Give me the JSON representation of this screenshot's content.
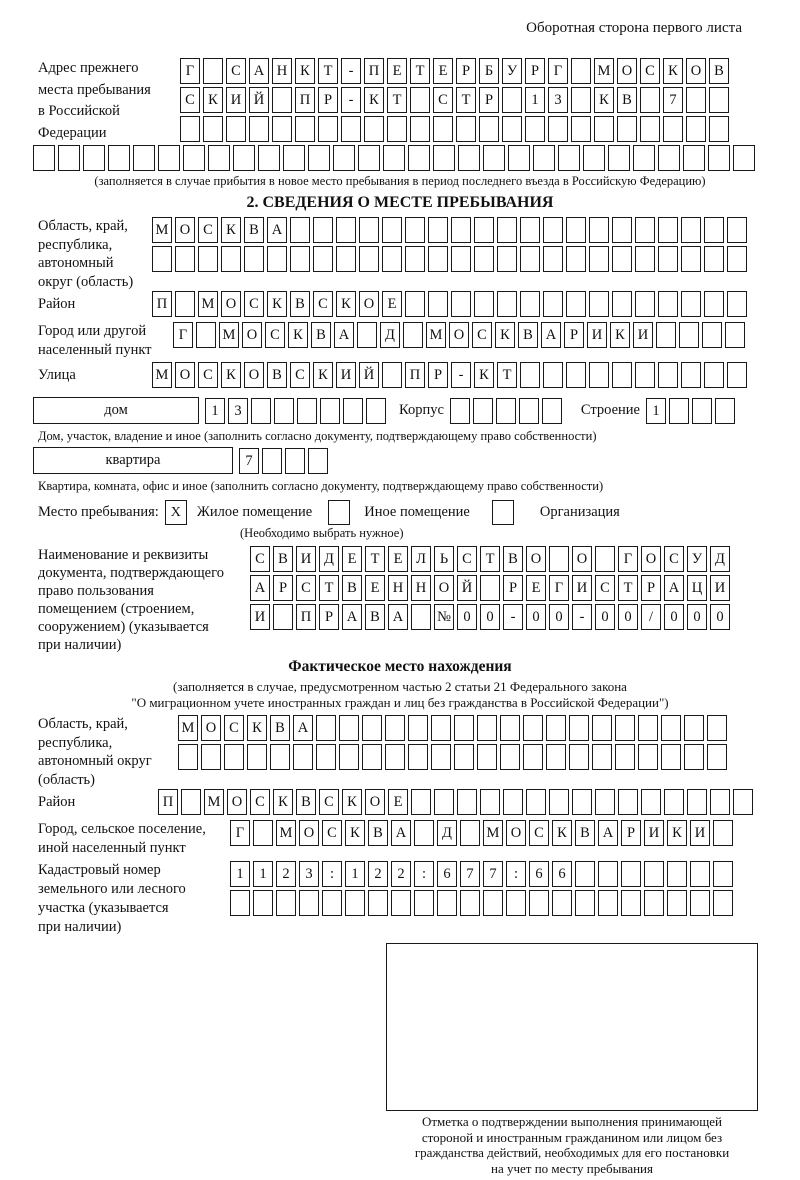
{
  "page": {
    "side_note": "Оборотная сторона первого листа"
  },
  "prev_address": {
    "label_lines": [
      "Адрес прежнего",
      "места пребывания",
      "в Российской",
      "Федерации"
    ],
    "row1": "Г САНКТ-ПЕТЕРБУРГ МОСКОВ",
    "row2": "СКИЙ ПР-КТ СТР 13 КВ 7",
    "row3": "",
    "row4": "",
    "caption": "(заполняется в случае прибытия в новое место пребывания в период последнего въезда в Российскую Федерацию)"
  },
  "section2": {
    "title": "2. СВЕДЕНИЯ О МЕСТЕ ПРЕБЫВАНИЯ",
    "region": {
      "label_lines": [
        "Область, край,",
        "республика,",
        "автономный",
        "округ (область)"
      ],
      "row1": "МОСКВА",
      "row2": ""
    },
    "district": {
      "label": "Район",
      "row": "П МОСКВСКОЕ"
    },
    "city": {
      "label_lines": [
        "Город или другой",
        "населенный пункт"
      ],
      "row": "Г МОСКВА Д МОСКВАРИКИ"
    },
    "street": {
      "label": "Улица",
      "row": "МОСКОВСКИЙ ПР-КТ"
    },
    "house": {
      "box_label": "дом",
      "cells": "13",
      "korpus_label": "Корпус",
      "korpus_cells": "",
      "stroenie_label": "Строение",
      "stroenie_cells": "1",
      "caption": "Дом, участок, владение и иное (заполнить согласно документу, подтверждающему право собственности)"
    },
    "apartment": {
      "box_label": "квартира",
      "cells": "7",
      "caption": "Квартира, комната, офис и иное (заполнить согласно документу, подтверждающему право собственности)"
    },
    "stay_place": {
      "label": "Место пребывания:",
      "options": [
        {
          "label": "Жилое помещение",
          "mark": "X"
        },
        {
          "label": "Иное помещение",
          "mark": ""
        },
        {
          "label": "Организация",
          "mark": ""
        }
      ],
      "caption": "(Необходимо выбрать нужное)"
    },
    "document": {
      "label_lines": [
        "Наименование и реквизиты",
        "документа, подтверждающего",
        "право пользования",
        "помещением (строением,",
        "сооружением) (указывается",
        "при наличии)"
      ],
      "row1": "СВИДЕТЕЛЬСТВО О ГОСУД",
      "row2": "АРСТВЕННОЙ РЕГИСТРАЦИ",
      "row3": "И ПРАВА №00-00-00/000"
    }
  },
  "actual_location": {
    "title": "Фактическое место нахождения",
    "caption_line1": "(заполняется в случае, предусмотренном частью 2 статьи 21 Федерального закона",
    "caption_line2": "\"О миграционном учете иностранных граждан и лиц без гражданства в Российской Федерации\")",
    "region": {
      "label_lines": [
        "Область, край,",
        "республика,",
        "автономный округ",
        "(область)"
      ],
      "row1": "МОСКВА",
      "row2": ""
    },
    "district": {
      "label": "Район",
      "row": "П МОСКВСКОЕ"
    },
    "city": {
      "label_lines": [
        "Город, сельское поселение,",
        "иной населенный пункт"
      ],
      "row": "Г МОСКВА Д МОСКВАРИКИ"
    },
    "cadastral": {
      "label_lines": [
        "Кадастровый номер",
        "земельного или лесного",
        "участка (указывается",
        "при наличии)"
      ],
      "row1": "1123:122:677:66",
      "row2": ""
    },
    "stamp_caption_lines": [
      "Отметка о подтверждении выполнения принимающей",
      "стороной и иностранным гражданином или лицом без",
      "гражданства действий, необходимых для его постановки",
      "на учет по месту пребывания"
    ]
  }
}
